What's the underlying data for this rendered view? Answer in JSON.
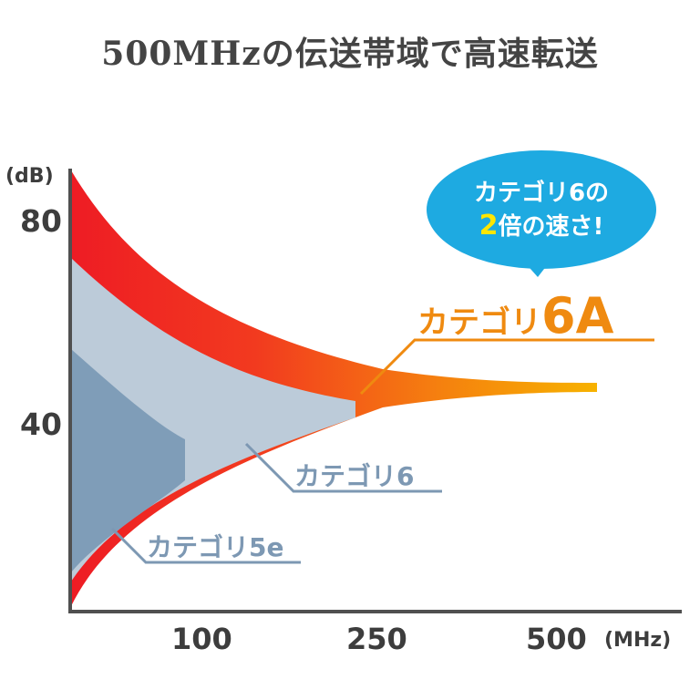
{
  "title": "500MHzの伝送帯域で高速転送",
  "chart_data": {
    "type": "area",
    "title": "500MHzの伝送帯域で高速転送",
    "ylabel": "(dB)",
    "xlabel": "(MHz)",
    "y_ticks": [
      "80",
      "40"
    ],
    "x_ticks": [
      "100",
      "250",
      "500"
    ],
    "series": [
      {
        "name": "カテゴリ6A",
        "bandwidth_mhz": 500,
        "color_start": "#ee1c24",
        "color_end": "#f7b200"
      },
      {
        "name": "カテゴリ6",
        "bandwidth_mhz": 250,
        "color": "#bccbd9"
      },
      {
        "name": "カテゴリ5e",
        "bandwidth_mhz": 100,
        "color": "#7f9db8"
      }
    ],
    "callout": {
      "line1": "カテゴリ6の",
      "line2_emph": "2",
      "line2_rest": "倍の速さ!"
    },
    "grid": false
  },
  "colors": {
    "axis": "#505050",
    "cat6a_label": "#ef8a10",
    "cat6_label": "#7d98b3",
    "bubble": "#1eaae1",
    "bubble_text": "#ffffff",
    "bubble_emph": "#ffe600"
  }
}
